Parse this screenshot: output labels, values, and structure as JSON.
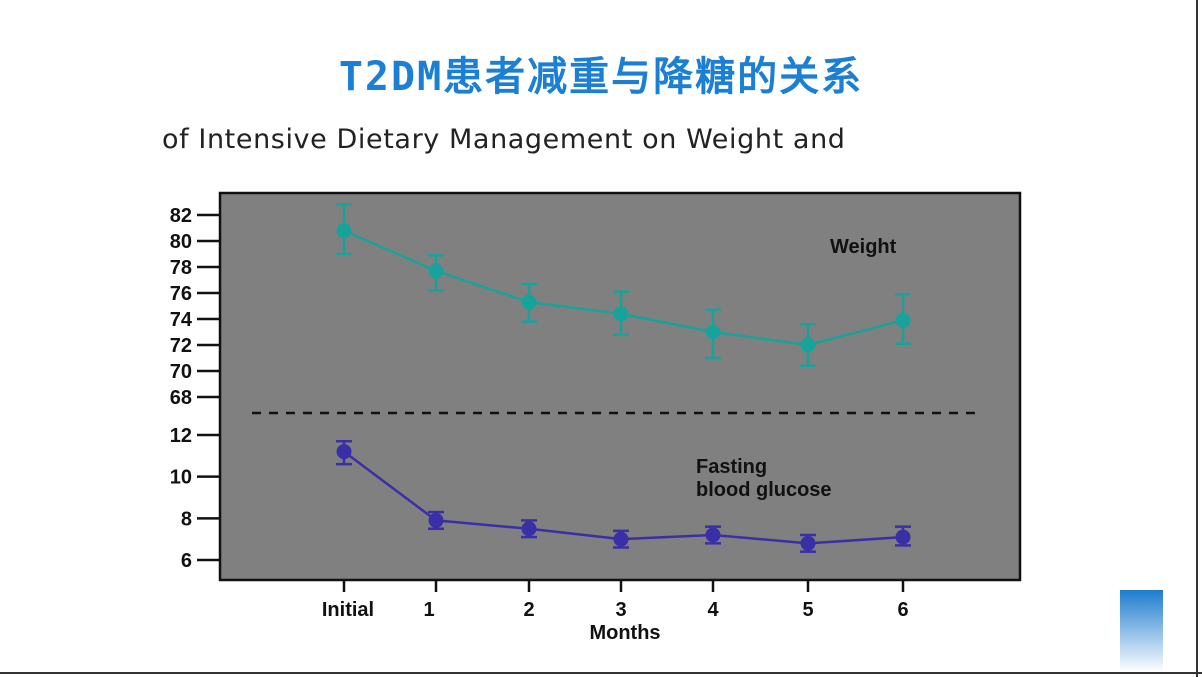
{
  "title": "T2DM患者减重与降糖的关系",
  "subtitle": "of Intensive Dietary Management on Weight and",
  "chart_data": {
    "type": "line",
    "xlabel": "Months",
    "categories": [
      "Initial",
      "1",
      "2",
      "3",
      "4",
      "5",
      "6"
    ],
    "panels": [
      {
        "name": "Weight",
        "color": "#17a39b",
        "yticks": [
          68,
          70,
          72,
          74,
          76,
          78,
          80,
          82
        ],
        "ylim": [
          68,
          82
        ],
        "values": [
          80.8,
          77.7,
          75.3,
          74.4,
          73.0,
          72.0,
          73.9
        ],
        "err_high": [
          82.8,
          78.9,
          76.7,
          76.1,
          74.7,
          73.6,
          75.9
        ],
        "err_low": [
          79.0,
          76.2,
          73.8,
          72.8,
          71.0,
          70.4,
          72.1
        ]
      },
      {
        "name": "Fasting blood glucose",
        "label_lines": [
          "Fasting",
          "blood glucose"
        ],
        "color": "#3a2fa6",
        "yticks": [
          6,
          8,
          10,
          12
        ],
        "ylim": [
          6,
          12
        ],
        "values": [
          11.2,
          7.9,
          7.5,
          7.0,
          7.2,
          6.8,
          7.1
        ],
        "err_high": [
          11.7,
          8.3,
          7.9,
          7.4,
          7.6,
          7.2,
          7.6
        ],
        "err_low": [
          10.6,
          7.5,
          7.1,
          6.6,
          6.8,
          6.4,
          6.7
        ]
      }
    ],
    "divider": "dashed"
  }
}
